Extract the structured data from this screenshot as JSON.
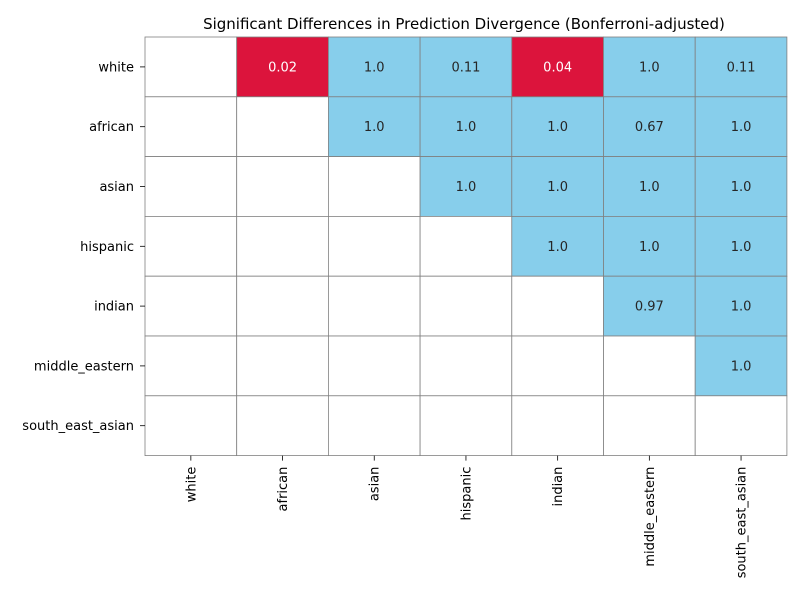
{
  "chart_data": {
    "type": "heatmap",
    "title": "Significant Differences in Prediction Divergence (Bonferroni-adjusted)",
    "xlabel": "",
    "ylabel": "",
    "rows": [
      "white",
      "african",
      "asian",
      "hispanic",
      "indian",
      "middle_eastern",
      "south_east_asian"
    ],
    "columns": [
      "white",
      "african",
      "asian",
      "hispanic",
      "indian",
      "middle_eastern",
      "south_east_asian"
    ],
    "values": [
      [
        null,
        0.02,
        1.0,
        0.11,
        0.04,
        1.0,
        0.11
      ],
      [
        null,
        null,
        1.0,
        1.0,
        1.0,
        0.67,
        1.0
      ],
      [
        null,
        null,
        null,
        1.0,
        1.0,
        1.0,
        1.0
      ],
      [
        null,
        null,
        null,
        null,
        1.0,
        1.0,
        1.0
      ],
      [
        null,
        null,
        null,
        null,
        null,
        0.97,
        1.0
      ],
      [
        null,
        null,
        null,
        null,
        null,
        null,
        1.0
      ],
      [
        null,
        null,
        null,
        null,
        null,
        null,
        null
      ]
    ],
    "cell_labels": [
      [
        "",
        "0.02",
        "1.0",
        "0.11",
        "0.04",
        "1.0",
        "0.11"
      ],
      [
        "",
        "",
        "1.0",
        "1.0",
        "1.0",
        "0.67",
        "1.0"
      ],
      [
        "",
        "",
        "",
        "1.0",
        "1.0",
        "1.0",
        "1.0"
      ],
      [
        "",
        "",
        "",
        "",
        "1.0",
        "1.0",
        "1.0"
      ],
      [
        "",
        "",
        "",
        "",
        "",
        "0.97",
        "1.0"
      ],
      [
        "",
        "",
        "",
        "",
        "",
        "",
        "1.0"
      ],
      [
        "",
        "",
        "",
        "",
        "",
        "",
        ""
      ]
    ],
    "significance_threshold": 0.05,
    "colors": {
      "significant": "#dc143c",
      "not_significant": "#87ceeb",
      "empty": "#ffffff",
      "grid": "#808080",
      "text_on_significant": "#ffffff",
      "text_on_not_significant": "#262626"
    },
    "grid": true,
    "legend": "none"
  }
}
